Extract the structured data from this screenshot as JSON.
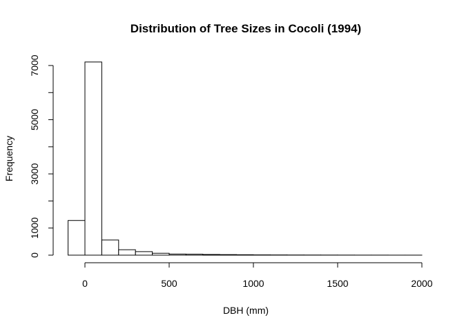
{
  "chart_data": {
    "type": "bar",
    "title": "Distribution of Tree Sizes in Cocoli (1994)",
    "xlabel": "DBH (mm)",
    "ylabel": "Frequency",
    "bin_width": 100,
    "bin_starts": [
      -100,
      0,
      100,
      200,
      300,
      400,
      500,
      600,
      700,
      800,
      900,
      1000,
      1100,
      1200,
      1300,
      1400,
      1500,
      1600,
      1700,
      1800,
      1900
    ],
    "values": [
      1280,
      7130,
      560,
      200,
      130,
      70,
      40,
      35,
      25,
      20,
      15,
      10,
      8,
      6,
      5,
      4,
      3,
      2,
      2,
      1,
      1
    ],
    "xlim": [
      -100,
      2000
    ],
    "ylim": [
      0,
      7130
    ],
    "x_ticks": [
      0,
      500,
      1000,
      1500,
      2000
    ],
    "y_ticks": [
      0,
      1000,
      2000,
      3000,
      4000,
      5000,
      6000,
      7000
    ],
    "y_tick_labels": [
      "0",
      "1000",
      "",
      "3000",
      "",
      "5000",
      "",
      "7000"
    ],
    "grid": false,
    "legend": "none"
  }
}
